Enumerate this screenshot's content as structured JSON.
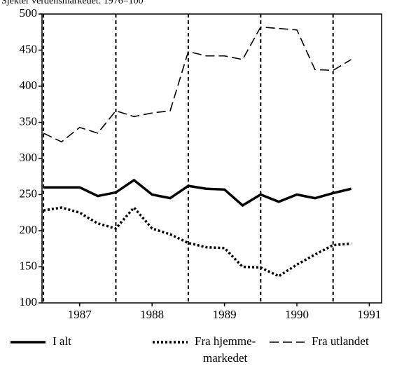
{
  "chart_data": {
    "type": "line",
    "subtitle": "Sjekter verdensmarkedet. 1976=100",
    "x": [
      1987,
      1987.25,
      1987.5,
      1987.75,
      1988,
      1988.25,
      1988.5,
      1988.75,
      1989,
      1989.25,
      1989.5,
      1989.75,
      1990,
      1990.25,
      1990.5,
      1990.75,
      1991,
      1991.25
    ],
    "series": [
      {
        "name": "I alt",
        "color": "#000000",
        "dash": "solid",
        "values": [
          260,
          260,
          260,
          248,
          253,
          270,
          250,
          245,
          262,
          258,
          257,
          235,
          250,
          240,
          250,
          245,
          252,
          258
        ]
      },
      {
        "name": "Fra hjemme-\nmarkedet",
        "color": "#000000",
        "dash": "dotted",
        "values": [
          228,
          232,
          225,
          210,
          203,
          232,
          203,
          195,
          183,
          177,
          176,
          150,
          149,
          137,
          153,
          167,
          180,
          182
        ]
      },
      {
        "name": "Fra utlandet",
        "color": "#000000",
        "dash": "dashed",
        "values": [
          335,
          323,
          343,
          335,
          366,
          358,
          363,
          366,
          448,
          442,
          442,
          437,
          482,
          480,
          478,
          423,
          422,
          437
        ]
      }
    ],
    "xlim": [
      1986.98,
      1991.67
    ],
    "xticks": [
      {
        "value": 1987.5,
        "label": "1987"
      },
      {
        "value": 1988.5,
        "label": "1988"
      },
      {
        "value": 1989.5,
        "label": "1989"
      },
      {
        "value": 1990.5,
        "label": "1990"
      },
      {
        "value": 1991.5,
        "label": "1991"
      }
    ],
    "vlines": [
      1987,
      1988,
      1989,
      1990,
      1991
    ],
    "ylim": [
      100,
      500
    ],
    "yticks": [
      100,
      150,
      200,
      250,
      300,
      350,
      400,
      450,
      500
    ],
    "legend": "bottom"
  }
}
